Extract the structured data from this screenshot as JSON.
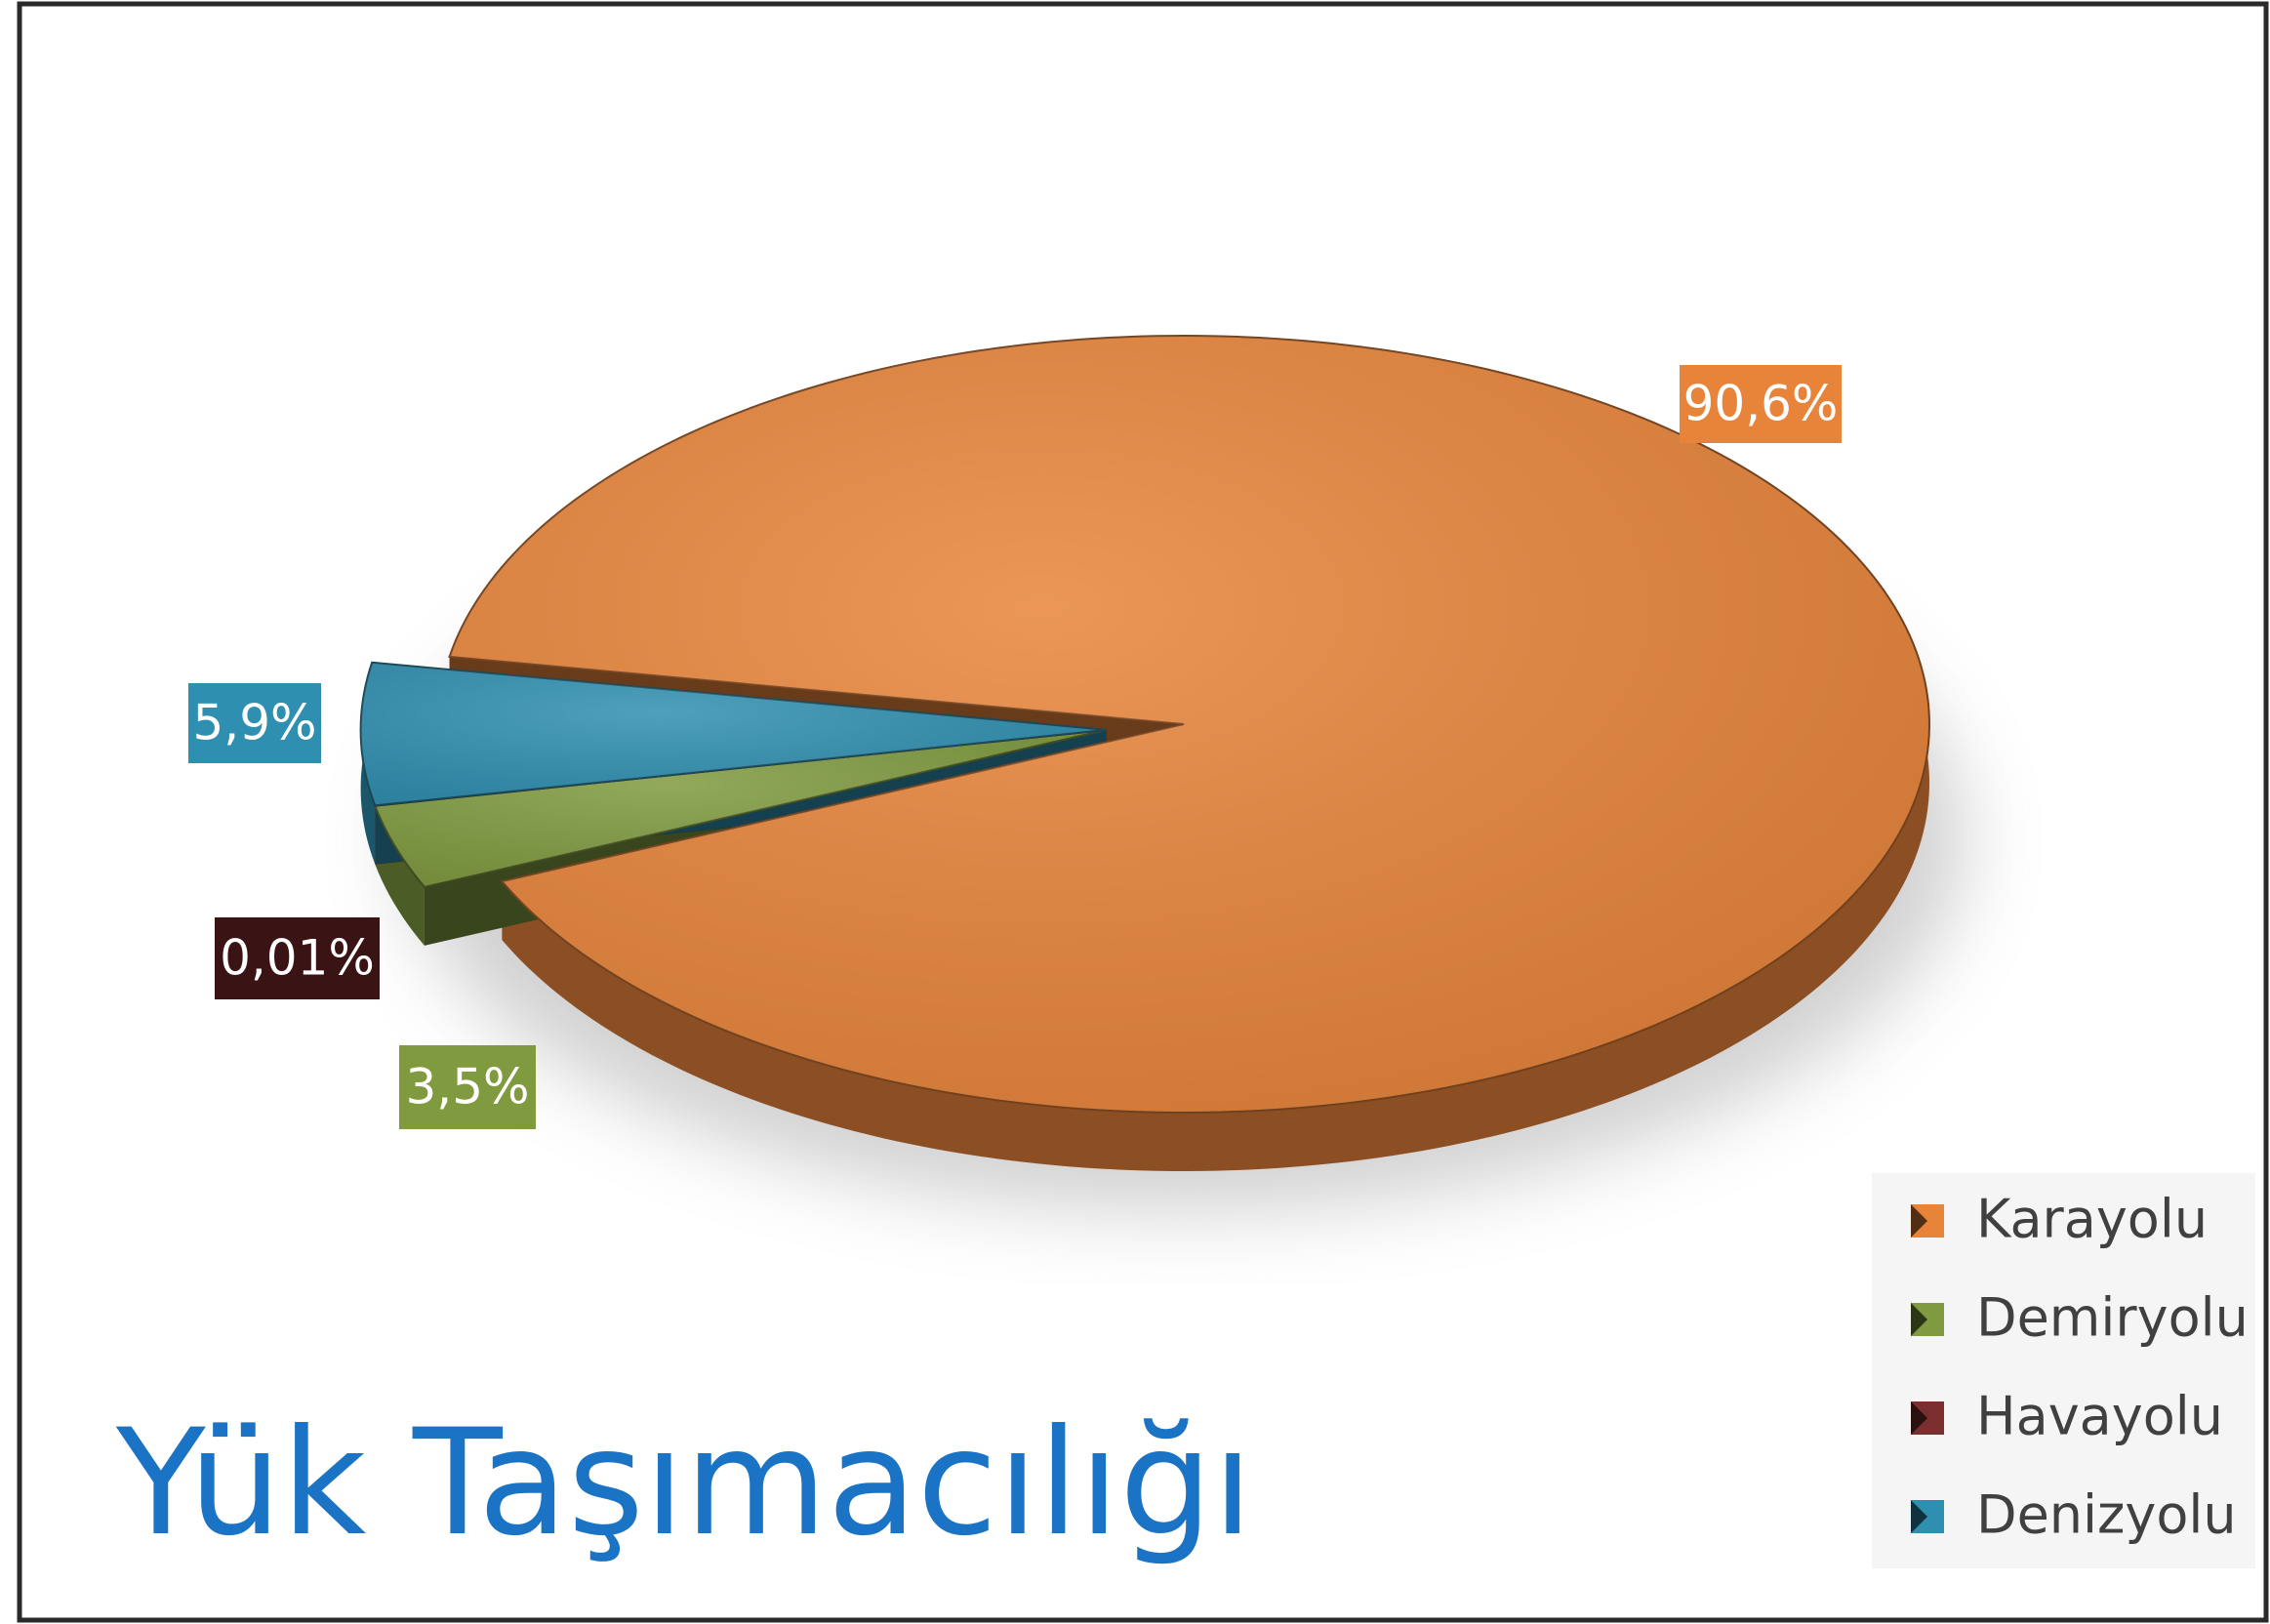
{
  "chart_data": {
    "type": "pie",
    "title": "Yük Taşımacılığı",
    "categories": [
      "Karayolu",
      "Demiryolu",
      "Havayolu",
      "Denizyolu"
    ],
    "values": [
      90.6,
      3.5,
      0.01,
      5.9
    ],
    "value_labels": [
      "90,6%",
      "3,5%",
      "0,01%",
      "5,9%"
    ],
    "colors": [
      "#e8843a",
      "#7f9a3f",
      "#7a2e2e",
      "#2f8fb0"
    ],
    "legend": "bottom-right"
  }
}
